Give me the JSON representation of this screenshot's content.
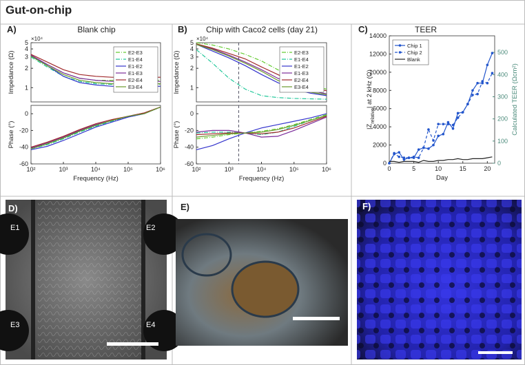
{
  "title": "Gut-on-chip",
  "images": [
    {
      "label": "D)",
      "electrodes": [
        "E1",
        "E2",
        "E3",
        "E4"
      ]
    },
    {
      "label": "E)"
    },
    {
      "label": "F)"
    }
  ],
  "chart_data": [
    {
      "type": "line",
      "panel": "A)",
      "title": "Blank chip",
      "ylabel": "Impedance (Ω)",
      "y_multiplier": "×10⁴",
      "xscale": "log",
      "yscale": "log",
      "x": [
        100,
        316,
        1000,
        3162,
        10000,
        31623,
        100000,
        316228,
        1000000
      ],
      "xlim": [
        100,
        1000000
      ],
      "ylim": [
        0.6,
        5
      ],
      "yticks": [
        1,
        2,
        3,
        4,
        5
      ],
      "legend": "upper right",
      "series": [
        {
          "name": "E2-E3",
          "color": "#66cc33",
          "linestyle": "dashdot",
          "values": [
            3.1,
            2.3,
            1.7,
            1.4,
            1.3,
            1.3,
            1.3,
            1.3,
            1.3
          ]
        },
        {
          "name": "E1-E4",
          "color": "#22c89a",
          "linestyle": "dashdot",
          "values": [
            3.0,
            2.1,
            1.5,
            1.25,
            1.15,
            1.12,
            1.12,
            1.12,
            1.12
          ]
        },
        {
          "name": "E1-E2",
          "color": "#3333cc",
          "linestyle": "solid",
          "values": [
            3.2,
            2.2,
            1.5,
            1.2,
            1.1,
            1.05,
            1.05,
            1.05,
            1.05
          ]
        },
        {
          "name": "E1-E3",
          "color": "#7a2a9a",
          "linestyle": "solid",
          "values": [
            3.2,
            2.3,
            1.7,
            1.4,
            1.3,
            1.25,
            1.25,
            1.25,
            1.25
          ]
        },
        {
          "name": "E2-E4",
          "color": "#a0282a",
          "linestyle": "solid",
          "values": [
            3.3,
            2.5,
            1.9,
            1.6,
            1.5,
            1.45,
            1.45,
            1.45,
            1.45
          ]
        },
        {
          "name": "E3-E4",
          "color": "#6a9a2a",
          "linestyle": "solid",
          "values": [
            3.1,
            2.2,
            1.6,
            1.3,
            1.2,
            1.15,
            1.15,
            1.15,
            1.15
          ]
        }
      ]
    },
    {
      "type": "line",
      "ylabel": "Phase (°)",
      "xlabel": "Frequency (Hz)",
      "xscale": "log",
      "x": [
        100,
        316,
        1000,
        3162,
        10000,
        31623,
        100000,
        316228,
        1000000
      ],
      "xlim": [
        100,
        1000000
      ],
      "xticks": [
        {
          "value": 100,
          "label": "10²"
        },
        {
          "value": 1000,
          "label": "10³"
        },
        {
          "value": 10000,
          "label": "10⁴"
        },
        {
          "value": 100000,
          "label": "10⁵"
        },
        {
          "value": 1000000,
          "label": "10⁶"
        }
      ],
      "ylim": [
        -60,
        10
      ],
      "yticks": [
        -60,
        -40,
        -20,
        0
      ],
      "series": [
        {
          "color": "#66cc33",
          "linestyle": "dashdot",
          "values": [
            -41,
            -36,
            -29,
            -21,
            -14,
            -8,
            -3,
            1,
            8
          ]
        },
        {
          "color": "#22c89a",
          "linestyle": "dashdot",
          "values": [
            -42,
            -37,
            -30,
            -22,
            -15,
            -9,
            -4,
            0,
            8
          ]
        },
        {
          "color": "#3333cc",
          "linestyle": "solid",
          "values": [
            -43,
            -39,
            -32,
            -24,
            -16,
            -10,
            -4,
            0,
            8
          ]
        },
        {
          "color": "#7a2a9a",
          "linestyle": "solid",
          "values": [
            -41,
            -35,
            -28,
            -20,
            -13,
            -8,
            -3,
            1,
            8
          ]
        },
        {
          "color": "#a0282a",
          "linestyle": "solid",
          "values": [
            -40,
            -34,
            -27,
            -19,
            -12,
            -7,
            -3,
            1,
            8
          ]
        },
        {
          "color": "#6a9a2a",
          "linestyle": "solid",
          "values": [
            -42,
            -36,
            -29,
            -21,
            -14,
            -8,
            -3,
            0,
            8
          ]
        }
      ]
    },
    {
      "type": "line",
      "panel": "B)",
      "title": "Chip with Caco2 cells (day 21)",
      "ylabel": "Impedance (Ω)",
      "y_multiplier": "×10⁴",
      "xscale": "log",
      "yscale": "log",
      "x": [
        100,
        316,
        1000,
        3162,
        10000,
        31623,
        100000,
        316228,
        1000000
      ],
      "xlim": [
        100,
        1000000
      ],
      "ylim": [
        0.6,
        5
      ],
      "yticks": [
        1,
        2,
        3,
        4,
        5
      ],
      "legend": "upper right",
      "vline": 2000,
      "series": [
        {
          "name": "E2-E3",
          "color": "#66cc33",
          "linestyle": "dashdot",
          "values": [
            5.0,
            4.6,
            4.0,
            3.3,
            2.6,
            1.9,
            1.4,
            1.1,
            0.95
          ]
        },
        {
          "name": "E1-E4",
          "color": "#22c89a",
          "linestyle": "dashdot",
          "values": [
            3.9,
            2.4,
            1.4,
            0.95,
            0.75,
            0.7,
            0.68,
            0.67,
            0.66
          ]
        },
        {
          "name": "E1-E2",
          "color": "#3333cc",
          "linestyle": "solid",
          "values": [
            4.7,
            3.7,
            2.9,
            2.2,
            1.6,
            1.2,
            0.95,
            0.82,
            0.75
          ]
        },
        {
          "name": "E1-E3",
          "color": "#7a2a9a",
          "linestyle": "solid",
          "values": [
            4.8,
            4.0,
            3.2,
            2.5,
            1.9,
            1.4,
            1.1,
            0.9,
            0.8
          ]
        },
        {
          "name": "E2-E4",
          "color": "#a0282a",
          "linestyle": "solid",
          "values": [
            4.8,
            4.1,
            3.4,
            2.8,
            2.1,
            1.6,
            1.2,
            1.0,
            0.9
          ]
        },
        {
          "name": "E3-E4",
          "color": "#6a9a2a",
          "linestyle": "solid",
          "values": [
            4.7,
            3.9,
            3.1,
            2.4,
            1.8,
            1.3,
            1.0,
            0.85,
            0.78
          ]
        }
      ]
    },
    {
      "type": "line",
      "ylabel": "Phase (°)",
      "xlabel": "Frequency (Hz)",
      "xscale": "log",
      "x": [
        100,
        316,
        1000,
        3162,
        10000,
        31623,
        100000,
        316228,
        1000000
      ],
      "xlim": [
        100,
        1000000
      ],
      "vline": 2000,
      "xticks": [
        {
          "value": 100,
          "label": "10²"
        },
        {
          "value": 1000,
          "label": "10³"
        },
        {
          "value": 10000,
          "label": "10⁴"
        },
        {
          "value": 100000,
          "label": "10⁵"
        },
        {
          "value": 1000000,
          "label": "10⁶"
        }
      ],
      "ylim": [
        -60,
        10
      ],
      "yticks": [
        -60,
        -40,
        -20,
        0
      ],
      "series": [
        {
          "color": "#66cc33",
          "linestyle": "dashdot",
          "values": [
            -30,
            -28,
            -25,
            -23,
            -21,
            -18,
            -13,
            -7,
            -1
          ]
        },
        {
          "color": "#22c89a",
          "linestyle": "dashdot",
          "values": [
            -23,
            -22,
            -22,
            -23,
            -25,
            -22,
            -15,
            -8,
            -2
          ]
        },
        {
          "color": "#3333cc",
          "linestyle": "solid",
          "values": [
            -43,
            -38,
            -30,
            -23,
            -17,
            -13,
            -9,
            -5,
            0
          ]
        },
        {
          "color": "#7a2a9a",
          "linestyle": "solid",
          "values": [
            -22,
            -20,
            -20,
            -23,
            -28,
            -27,
            -20,
            -12,
            -4
          ]
        },
        {
          "color": "#a0282a",
          "linestyle": "solid",
          "values": [
            -25,
            -24,
            -23,
            -23,
            -24,
            -22,
            -17,
            -10,
            -3
          ]
        },
        {
          "color": "#6a9a2a",
          "linestyle": "solid",
          "values": [
            -28,
            -26,
            -24,
            -23,
            -22,
            -19,
            -14,
            -8,
            -2
          ]
        }
      ]
    },
    {
      "type": "line",
      "panel": "C)",
      "title": "TEER",
      "xlabel": "Day",
      "ylabel": [
        "|Z",
        "relative",
        "| at 2 kHz (Ω)"
      ],
      "y2label": "Calculated TEER (Ωcm²)",
      "y2color": "#4a8a7a",
      "x": [
        0,
        1,
        2,
        3,
        4,
        5,
        6,
        7,
        8,
        9,
        10,
        11,
        12,
        13,
        14,
        15,
        16,
        17,
        18,
        19,
        20,
        21
      ],
      "xlim": [
        0,
        21.5
      ],
      "xticks": [
        0,
        5,
        10,
        15,
        20
      ],
      "ylim": [
        0,
        14000
      ],
      "yticks": [
        0,
        2000,
        4000,
        6000,
        8000,
        10000,
        12000,
        14000
      ],
      "y2lim": [
        0,
        575
      ],
      "y2ticks": [
        0,
        100,
        200,
        300,
        400,
        500
      ],
      "legend": "upper left",
      "series": [
        {
          "name": "Chip 1",
          "color": "#2255cc",
          "linestyle": "solid",
          "marker": "o",
          "values": [
            0,
            1000,
            1200,
            400,
            600,
            600,
            1500,
            1700,
            1600,
            2000,
            3000,
            3200,
            4500,
            3800,
            5500,
            5600,
            6500,
            8000,
            8800,
            8800,
            10800,
            12100
          ]
        },
        {
          "name": "Chip 2",
          "color": "#2255cc",
          "linestyle": "dashed",
          "marker": "o",
          "values": [
            0,
            1100,
            700,
            600,
            600,
            700,
            600,
            1700,
            3700,
            2500,
            4300,
            4300,
            4300,
            4200,
            5000,
            5600,
            6500,
            7500,
            7600,
            9000,
            8800,
            9900
          ]
        },
        {
          "name": "Blank",
          "color": "#222222",
          "linestyle": "solid",
          "values": [
            200,
            200,
            100,
            200,
            200,
            200,
            100,
            300,
            200,
            200,
            300,
            300,
            400,
            400,
            500,
            400,
            400,
            500,
            500,
            500,
            600,
            700
          ]
        }
      ]
    }
  ]
}
